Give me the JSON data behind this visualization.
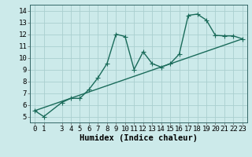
{
  "xlabel": "Humidex (Indice chaleur)",
  "bg_color": "#cceaea",
  "grid_color": "#aacfcf",
  "line_color": "#1a6b5a",
  "xlim": [
    -0.5,
    23.5
  ],
  "ylim": [
    4.5,
    14.5
  ],
  "xticks": [
    0,
    1,
    3,
    4,
    5,
    6,
    7,
    8,
    9,
    10,
    11,
    12,
    13,
    14,
    15,
    16,
    17,
    18,
    19,
    20,
    21,
    22,
    23
  ],
  "yticks": [
    5,
    6,
    7,
    8,
    9,
    10,
    11,
    12,
    13,
    14
  ],
  "curve_x": [
    0,
    1,
    3,
    4,
    5,
    6,
    7,
    8,
    9,
    10,
    11,
    12,
    13,
    14,
    15,
    16,
    17,
    18,
    19,
    20,
    21,
    22,
    23
  ],
  "curve_y": [
    5.5,
    5.0,
    6.2,
    6.55,
    6.55,
    7.3,
    8.3,
    9.5,
    12.0,
    11.8,
    9.0,
    10.5,
    9.5,
    9.2,
    9.5,
    10.3,
    13.6,
    13.7,
    13.2,
    11.9,
    11.85,
    11.85,
    11.6
  ],
  "trend_x": [
    0,
    23
  ],
  "trend_y": [
    5.5,
    11.6
  ],
  "marker_size": 4,
  "line_width": 1.0,
  "tick_fontsize": 6.5,
  "xlabel_fontsize": 7.5
}
